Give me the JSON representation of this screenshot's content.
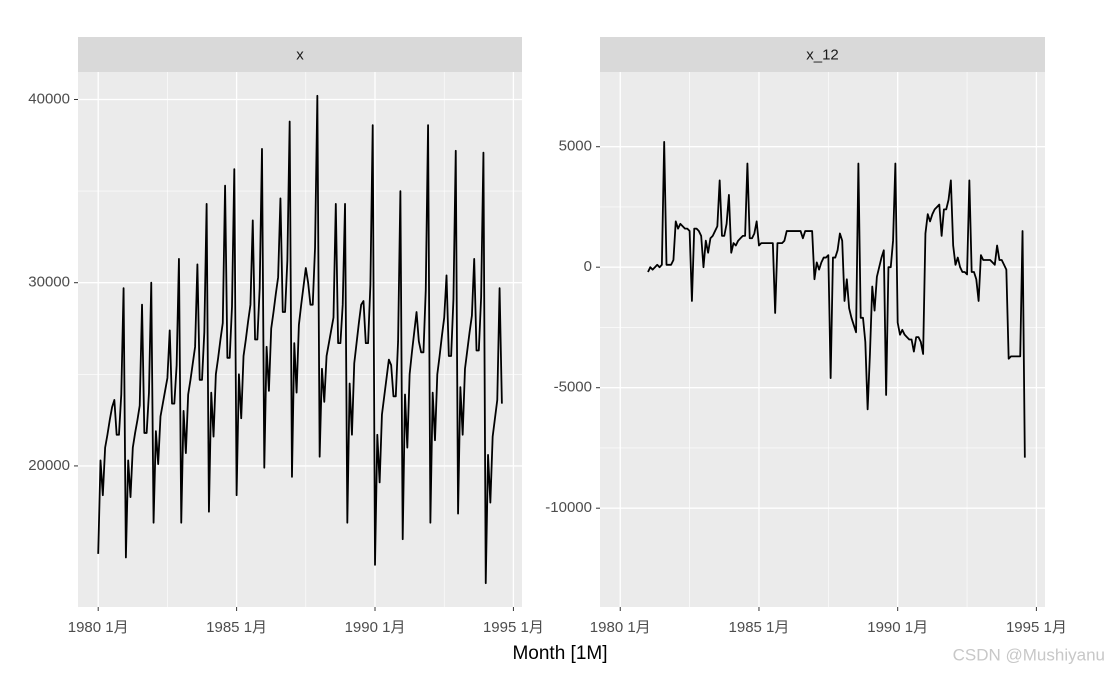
{
  "chart_data": [
    {
      "type": "line",
      "title": "x",
      "color": "#000000",
      "grid": true,
      "x": [
        "1980-01",
        "1980-02",
        "1980-03",
        "1980-04",
        "1980-05",
        "1980-06",
        "1980-07",
        "1980-08",
        "1980-09",
        "1980-10",
        "1980-11",
        "1980-12",
        "1981-01",
        "1981-02",
        "1981-03",
        "1981-04",
        "1981-05",
        "1981-06",
        "1981-07",
        "1981-08",
        "1981-09",
        "1981-10",
        "1981-11",
        "1981-12",
        "1982-01",
        "1982-02",
        "1982-03",
        "1982-04",
        "1982-05",
        "1982-06",
        "1982-07",
        "1982-08",
        "1982-09",
        "1982-10",
        "1982-11",
        "1982-12",
        "1983-01",
        "1983-02",
        "1983-03",
        "1983-04",
        "1983-05",
        "1983-06",
        "1983-07",
        "1983-08",
        "1983-09",
        "1983-10",
        "1983-11",
        "1983-12",
        "1984-01",
        "1984-02",
        "1984-03",
        "1984-04",
        "1984-05",
        "1984-06",
        "1984-07",
        "1984-08",
        "1984-09",
        "1984-10",
        "1984-11",
        "1984-12",
        "1985-01",
        "1985-02",
        "1985-03",
        "1985-04",
        "1985-05",
        "1985-06",
        "1985-07",
        "1985-08",
        "1985-09",
        "1985-10",
        "1985-11",
        "1985-12",
        "1986-01",
        "1986-02",
        "1986-03",
        "1986-04",
        "1986-05",
        "1986-06",
        "1986-07",
        "1986-08",
        "1986-09",
        "1986-10",
        "1986-11",
        "1986-12",
        "1987-01",
        "1987-02",
        "1987-03",
        "1987-04",
        "1987-05",
        "1987-06",
        "1987-07",
        "1987-08",
        "1987-09",
        "1987-10",
        "1987-11",
        "1987-12",
        "1988-01",
        "1988-02",
        "1988-03",
        "1988-04",
        "1988-05",
        "1988-06",
        "1988-07",
        "1988-08",
        "1988-09",
        "1988-10",
        "1988-11",
        "1988-12",
        "1989-01",
        "1989-02",
        "1989-03",
        "1989-04",
        "1989-05",
        "1989-06",
        "1989-07",
        "1989-08",
        "1989-09",
        "1989-10",
        "1989-11",
        "1989-12",
        "1990-01",
        "1990-02",
        "1990-03",
        "1990-04",
        "1990-05",
        "1990-06",
        "1990-07",
        "1990-08",
        "1990-09",
        "1990-10",
        "1990-11",
        "1990-12",
        "1991-01",
        "1991-02",
        "1991-03",
        "1991-04",
        "1991-05",
        "1991-06",
        "1991-07",
        "1991-08",
        "1991-09",
        "1991-10",
        "1991-11",
        "1991-12",
        "1992-01",
        "1992-02",
        "1992-03",
        "1992-04",
        "1992-05",
        "1992-06",
        "1992-07",
        "1992-08",
        "1992-09",
        "1992-10",
        "1992-11",
        "1992-12",
        "1993-01",
        "1993-02",
        "1993-03",
        "1993-04",
        "1993-05",
        "1993-06",
        "1993-07",
        "1993-08",
        "1993-09",
        "1993-10",
        "1993-11",
        "1993-12",
        "1994-01",
        "1994-02",
        "1994-03",
        "1994-04",
        "1994-05",
        "1994-06",
        "1994-07",
        "1994-08"
      ],
      "values": [
        15200,
        20300,
        18400,
        21000,
        21700,
        22500,
        23200,
        23600,
        21700,
        21700,
        23900,
        29700,
        15000,
        20300,
        18300,
        21000,
        21800,
        22500,
        23300,
        28800,
        21800,
        21800,
        24000,
        30000,
        16900,
        21900,
        20100,
        22700,
        23400,
        24100,
        24800,
        27400,
        23400,
        23400,
        25500,
        31300,
        16900,
        23000,
        20700,
        23900,
        24700,
        25600,
        26500,
        31000,
        24700,
        24700,
        27300,
        34300,
        17500,
        24000,
        21600,
        25000,
        25900,
        26900,
        27800,
        35300,
        25900,
        25900,
        28700,
        36200,
        18400,
        25000,
        22600,
        26000,
        26900,
        27900,
        28800,
        33400,
        26900,
        26900,
        29700,
        37300,
        19900,
        26500,
        24100,
        27500,
        28400,
        29400,
        30300,
        34600,
        28400,
        28400,
        31200,
        38800,
        19400,
        26700,
        24000,
        27700,
        28800,
        29800,
        30800,
        30000,
        28800,
        28800,
        31900,
        40200,
        20500,
        25300,
        23500,
        26000,
        26700,
        27400,
        28100,
        34300,
        26700,
        26700,
        28800,
        34300,
        16900,
        24500,
        21700,
        25600,
        26700,
        27800,
        28800,
        29000,
        26700,
        26700,
        29900,
        38600,
        14600,
        21700,
        19100,
        22800,
        23800,
        24800,
        25800,
        25500,
        23800,
        23800,
        26800,
        35000,
        16000,
        23900,
        21000,
        25000,
        26200,
        27300,
        28400,
        26800,
        26200,
        26200,
        29600,
        38600,
        16900,
        24000,
        21400,
        25000,
        26000,
        27100,
        28100,
        30400,
        26000,
        26000,
        29100,
        37200,
        17400,
        24300,
        21700,
        25300,
        26300,
        27300,
        28200,
        31300,
        26300,
        26300,
        29200,
        37100,
        13600,
        20600,
        18000,
        21600,
        22600,
        23600,
        29700,
        23400
      ],
      "xlim": [
        1979.27,
        1995.31
      ],
      "xticks": [
        {
          "value": 1980,
          "label": "1980 1月"
        },
        {
          "value": 1985,
          "label": "1985 1月"
        },
        {
          "value": 1990,
          "label": "1990 1月"
        },
        {
          "value": 1995,
          "label": "1995 1月"
        }
      ],
      "ylim": [
        12300,
        41500
      ],
      "yticks": [
        20000,
        30000,
        40000
      ]
    },
    {
      "type": "line",
      "title": "x_12",
      "color": "#000000",
      "grid": true,
      "x": [
        "1981-01",
        "1981-02",
        "1981-03",
        "1981-04",
        "1981-05",
        "1981-06",
        "1981-07",
        "1981-08",
        "1981-09",
        "1981-10",
        "1981-11",
        "1981-12",
        "1982-01",
        "1982-02",
        "1982-03",
        "1982-04",
        "1982-05",
        "1982-06",
        "1982-07",
        "1982-08",
        "1982-09",
        "1982-10",
        "1982-11",
        "1982-12",
        "1983-01",
        "1983-02",
        "1983-03",
        "1983-04",
        "1983-05",
        "1983-06",
        "1983-07",
        "1983-08",
        "1983-09",
        "1983-10",
        "1983-11",
        "1983-12",
        "1984-01",
        "1984-02",
        "1984-03",
        "1984-04",
        "1984-05",
        "1984-06",
        "1984-07",
        "1984-08",
        "1984-09",
        "1984-10",
        "1984-11",
        "1984-12",
        "1985-01",
        "1985-02",
        "1985-03",
        "1985-04",
        "1985-05",
        "1985-06",
        "1985-07",
        "1985-08",
        "1985-09",
        "1985-10",
        "1985-11",
        "1985-12",
        "1986-01",
        "1986-02",
        "1986-03",
        "1986-04",
        "1986-05",
        "1986-06",
        "1986-07",
        "1986-08",
        "1986-09",
        "1986-10",
        "1986-11",
        "1986-12",
        "1987-01",
        "1987-02",
        "1987-03",
        "1987-04",
        "1987-05",
        "1987-06",
        "1987-07",
        "1987-08",
        "1987-09",
        "1987-10",
        "1987-11",
        "1987-12",
        "1988-01",
        "1988-02",
        "1988-03",
        "1988-04",
        "1988-05",
        "1988-06",
        "1988-07",
        "1988-08",
        "1988-09",
        "1988-10",
        "1988-11",
        "1988-12",
        "1989-01",
        "1989-02",
        "1989-03",
        "1989-04",
        "1989-05",
        "1989-06",
        "1989-07",
        "1989-08",
        "1989-09",
        "1989-10",
        "1989-11",
        "1989-12",
        "1990-01",
        "1990-02",
        "1990-03",
        "1990-04",
        "1990-05",
        "1990-06",
        "1990-07",
        "1990-08",
        "1990-09",
        "1990-10",
        "1990-11",
        "1990-12",
        "1991-01",
        "1991-02",
        "1991-03",
        "1991-04",
        "1991-05",
        "1991-06",
        "1991-07",
        "1991-08",
        "1991-09",
        "1991-10",
        "1991-11",
        "1991-12",
        "1992-01",
        "1992-02",
        "1992-03",
        "1992-04",
        "1992-05",
        "1992-06",
        "1992-07",
        "1992-08",
        "1992-09",
        "1992-10",
        "1992-11",
        "1992-12",
        "1993-01",
        "1993-02",
        "1993-03",
        "1993-04",
        "1993-05",
        "1993-06",
        "1993-07",
        "1993-08",
        "1993-09",
        "1993-10",
        "1993-11",
        "1993-12",
        "1994-01",
        "1994-02",
        "1994-03",
        "1994-04",
        "1994-05",
        "1994-06",
        "1994-07",
        "1994-08"
      ],
      "values": [
        -200,
        0,
        -100,
        0,
        100,
        0,
        100,
        5200,
        100,
        100,
        100,
        300,
        1900,
        1600,
        1800,
        1700,
        1600,
        1600,
        1500,
        -1400,
        1600,
        1600,
        1500,
        1300,
        0,
        1100,
        600,
        1200,
        1300,
        1500,
        1700,
        3600,
        1300,
        1300,
        1800,
        3000,
        600,
        1000,
        900,
        1100,
        1200,
        1300,
        1300,
        4300,
        1200,
        1200,
        1400,
        1900,
        900,
        1000,
        1000,
        1000,
        1000,
        1000,
        1000,
        -1900,
        1000,
        1000,
        1000,
        1100,
        1500,
        1500,
        1500,
        1500,
        1500,
        1500,
        1500,
        1200,
        1500,
        1500,
        1500,
        1500,
        -500,
        200,
        -100,
        200,
        400,
        400,
        500,
        -4600,
        400,
        400,
        700,
        1400,
        1100,
        -1400,
        -500,
        -1700,
        -2100,
        -2400,
        -2700,
        4300,
        -2100,
        -2100,
        -3100,
        -5900,
        -3600,
        -800,
        -1800,
        -400,
        0,
        400,
        700,
        -5300,
        0,
        0,
        1100,
        4300,
        -2300,
        -2800,
        -2600,
        -2800,
        -2900,
        -3000,
        -3000,
        -3500,
        -2900,
        -2900,
        -3100,
        -3600,
        1400,
        2200,
        1900,
        2200,
        2400,
        2500,
        2600,
        1300,
        2400,
        2400,
        2800,
        3600,
        900,
        100,
        400,
        0,
        -200,
        -200,
        -300,
        3600,
        -200,
        -200,
        -500,
        -1400,
        500,
        300,
        300,
        300,
        300,
        200,
        100,
        900,
        300,
        300,
        100,
        -100,
        -3800,
        -3700,
        -3700,
        -3700,
        -3700,
        -3700,
        1500,
        -7900
      ],
      "xlim": [
        1979.27,
        1995.31
      ],
      "xticks": [
        {
          "value": 1980,
          "label": "1980 1月"
        },
        {
          "value": 1985,
          "label": "1985 1月"
        },
        {
          "value": 1990,
          "label": "1990 1月"
        },
        {
          "value": 1995,
          "label": "1995 1月"
        }
      ],
      "ylim": [
        -14100,
        8100
      ],
      "yticks": [
        -10000,
        -5000,
        0,
        5000
      ]
    }
  ],
  "x_label": "Month [1M]",
  "watermark": "CSDN @Mushiyanu"
}
